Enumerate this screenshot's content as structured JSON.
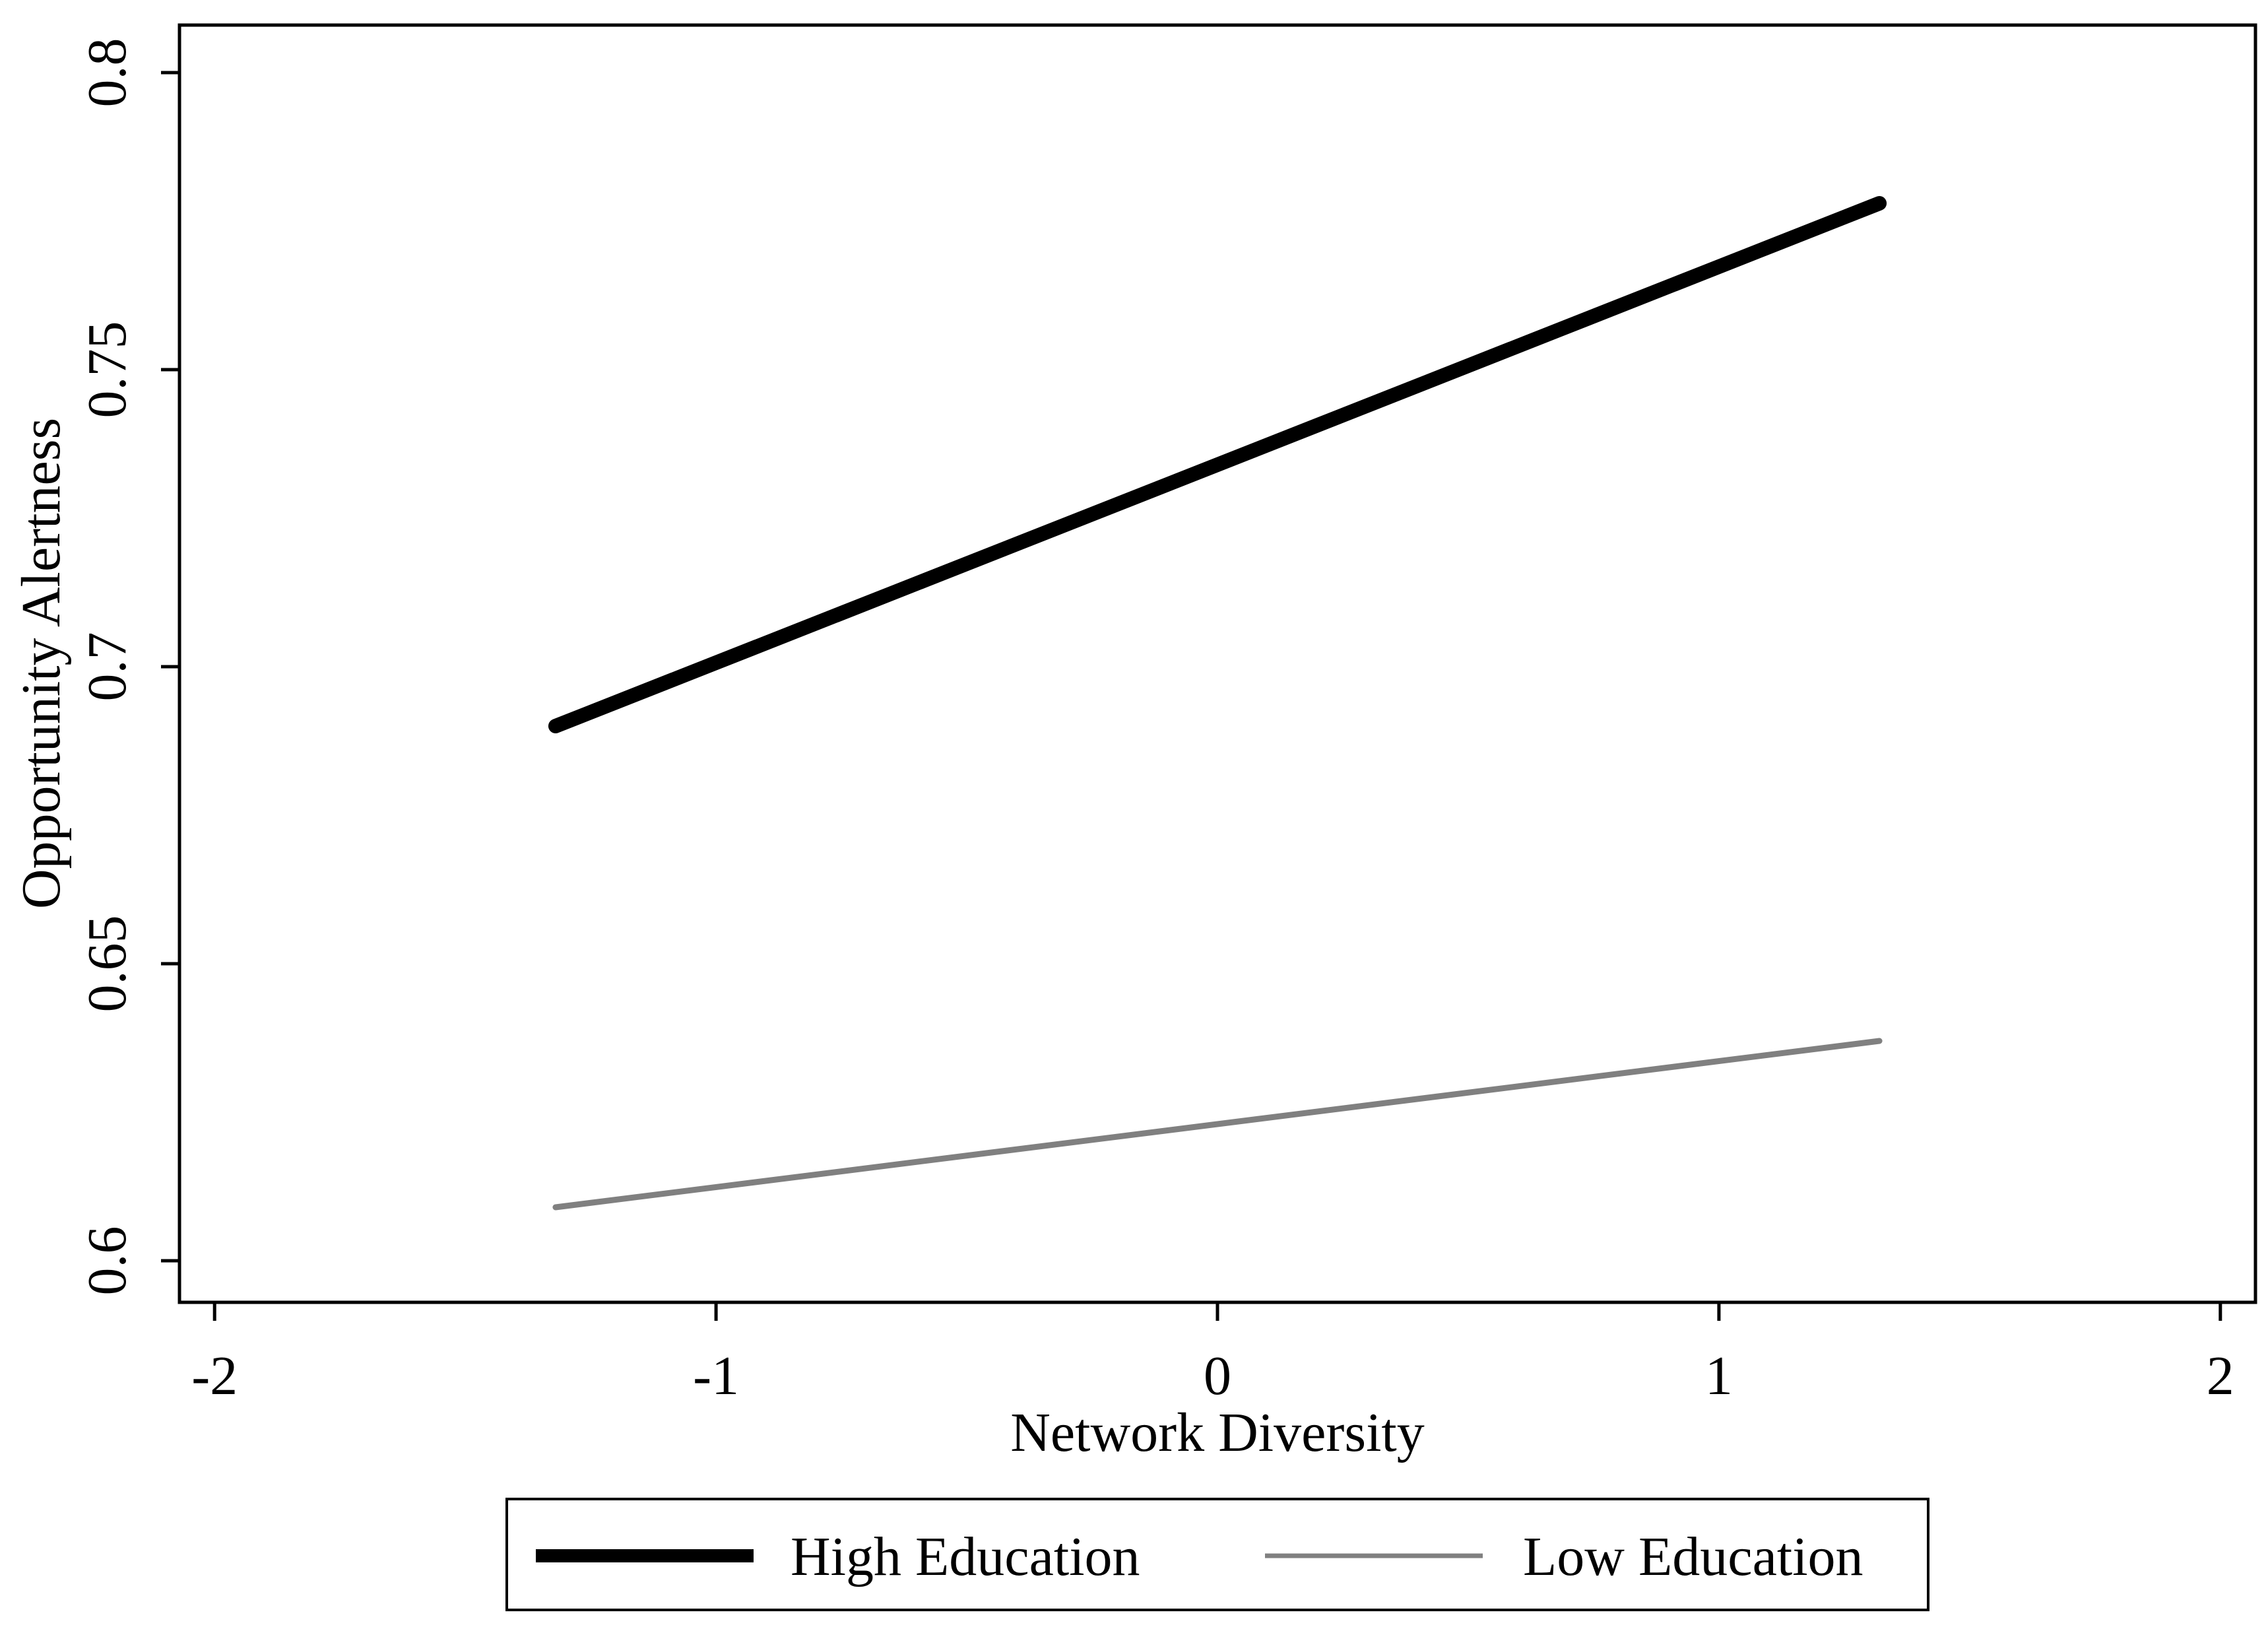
{
  "chart_data": {
    "type": "line",
    "title": "",
    "xlabel": "Network Diversity",
    "ylabel": "Opportunity Alertness",
    "xlim": [
      -2.07,
      2.07
    ],
    "ylim": [
      0.593,
      0.808
    ],
    "xticks": [
      -2,
      -1,
      0,
      1,
      2
    ],
    "xtick_labels": [
      "-2",
      "-1",
      "0",
      "1",
      "2"
    ],
    "yticks": [
      0.6,
      0.65,
      0.7,
      0.75,
      0.8
    ],
    "ytick_labels": [
      "0.6",
      "0.65",
      "0.7",
      "0.75",
      "0.8"
    ],
    "grid": false,
    "legend_position": "bottom",
    "series": [
      {
        "name": "High Education",
        "color": "#000000",
        "style": "thick",
        "x": [
          -1.32,
          1.32
        ],
        "y": [
          0.69,
          0.778
        ]
      },
      {
        "name": "Low Education",
        "color": "#808080",
        "style": "thin",
        "x": [
          -1.32,
          1.32
        ],
        "y": [
          0.609,
          0.637
        ]
      }
    ]
  }
}
